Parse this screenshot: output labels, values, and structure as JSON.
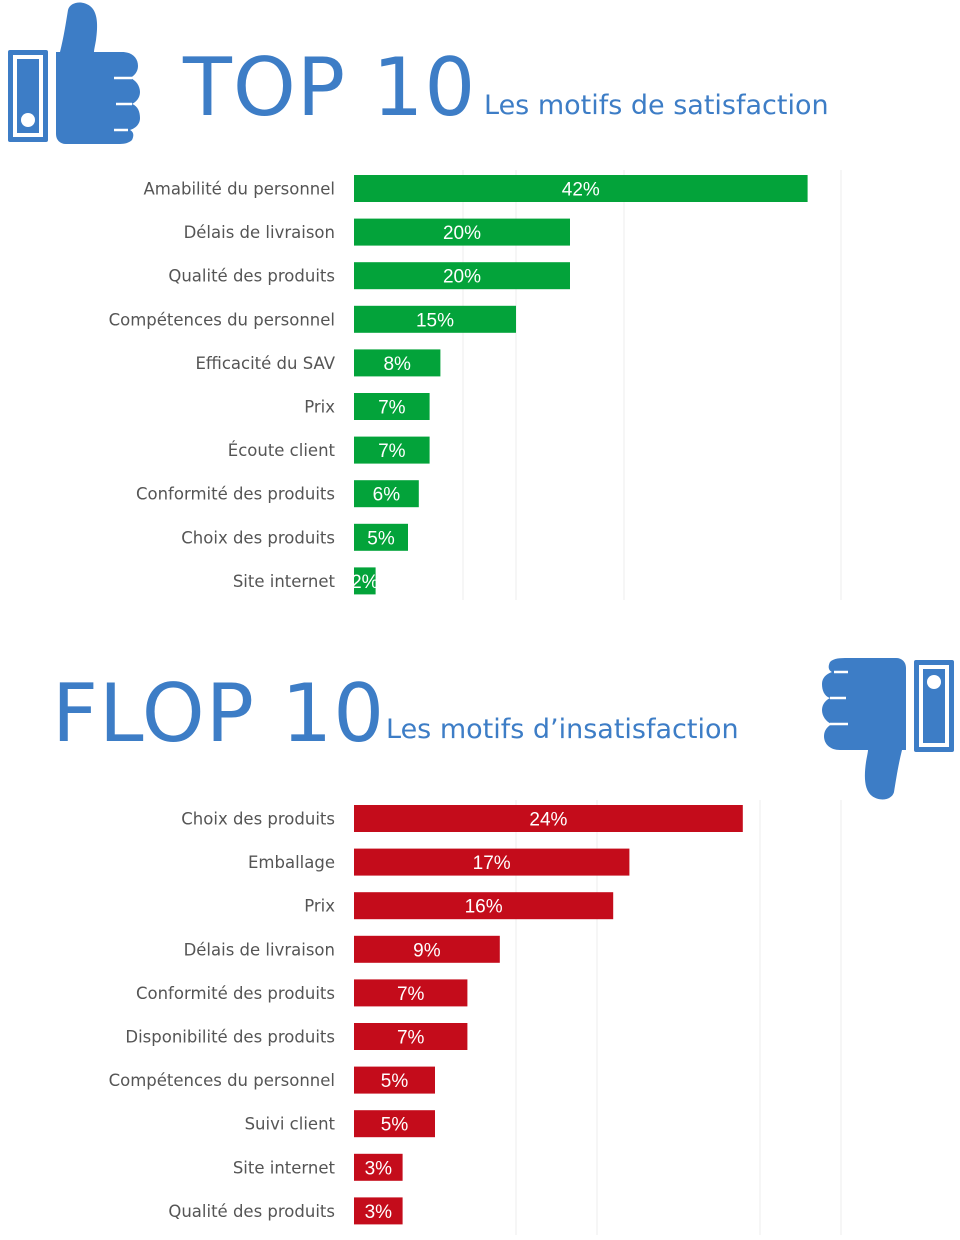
{
  "top": {
    "title": "TOP 10",
    "subtitle": "Les motifs de satisfaction",
    "icon": "thumbs-up-icon",
    "color": "#03a33a"
  },
  "flop": {
    "title": "FLOP 10",
    "subtitle": "Les motifs d’insatisfaction",
    "icon": "thumbs-down-icon",
    "color": "#c40c1b"
  },
  "icon_color": "#3d7dc6",
  "chart_data": [
    {
      "type": "bar",
      "orientation": "horizontal",
      "categories": [
        "Amabilité du personnel",
        "Délais de livraison",
        "Qualité des produits",
        "Compétences du personnel",
        "Efficacité du SAV",
        "Prix",
        "Écoute client",
        "Conformité des produits",
        "Choix des produits",
        "Site internet"
      ],
      "values": [
        42,
        20,
        20,
        15,
        8,
        7,
        7,
        6,
        5,
        2
      ],
      "value_labels": [
        "42%",
        "20%",
        "20%",
        "15%",
        "8%",
        "7%",
        "7%",
        "6%",
        "5%",
        "2%"
      ],
      "color": "#03a33a",
      "xlim": [
        0,
        45
      ]
    },
    {
      "type": "bar",
      "orientation": "horizontal",
      "categories": [
        "Choix des produits",
        "Emballage",
        "Prix",
        "Délais de livraison",
        "Conformité des produits",
        "Disponibilité des produits",
        "Compétences du personnel",
        "Suivi client",
        "Site internet",
        "Qualité des produits"
      ],
      "values": [
        24,
        17,
        16,
        9,
        7,
        7,
        5,
        5,
        3,
        3
      ],
      "value_labels": [
        "24%",
        "17%",
        "16%",
        "9%",
        "7%",
        "7%",
        "5%",
        "5%",
        "3%",
        "3%"
      ],
      "color": "#c40c1b",
      "xlim": [
        0,
        30
      ]
    }
  ]
}
